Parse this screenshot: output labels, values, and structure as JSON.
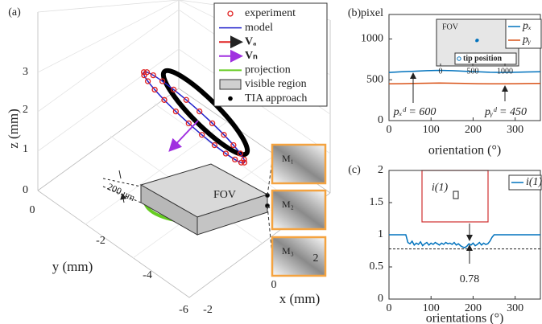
{
  "chart_data": [
    {
      "type": "3d",
      "panel_label": "(a)",
      "x_label": "x (mm)",
      "y_label": "y (mm)",
      "z_label": "z (mm)",
      "xticks": [
        -2,
        0,
        2
      ],
      "yticks": [
        -6,
        -4,
        -2,
        0
      ],
      "zticks": [
        0,
        1,
        2,
        3
      ],
      "legend": [
        "experiment",
        "model",
        "Vₐ",
        "Vₙ",
        "projection",
        "visible region",
        "TIA approach"
      ],
      "annotations": [
        "FOV",
        "200 um",
        "M₁",
        "M₂",
        "M₃"
      ]
    },
    {
      "type": "line",
      "panel_label": "(b)",
      "y_label": "pixel",
      "x_label": "orientation (°)",
      "x": [
        0,
        30,
        60,
        90,
        120,
        150,
        180,
        210,
        240,
        270,
        300,
        330,
        360
      ],
      "xlim": [
        0,
        360
      ],
      "xticks": [
        0,
        100,
        200,
        300
      ],
      "ylim": [
        0,
        1300
      ],
      "yticks": [
        0,
        500,
        1000
      ],
      "series": [
        {
          "name": "pₓ",
          "color": "#0072bd",
          "values": [
            590,
            598,
            605,
            612,
            615,
            612,
            605,
            598,
            592,
            590,
            592,
            596,
            598
          ]
        },
        {
          "name": "pᵧ",
          "color": "#d95319",
          "values": [
            450,
            452,
            455,
            458,
            460,
            458,
            455,
            452,
            450,
            450,
            452,
            454,
            455
          ]
        }
      ],
      "annotations": [
        "pₓᵈ = 600",
        "pᵧᵈ = 450"
      ]
    },
    {
      "type": "scatter",
      "title": "FOV",
      "xlim": [
        0,
        1200
      ],
      "xticks": [
        0,
        500,
        1000
      ],
      "ylim": [
        0,
        1024
      ],
      "series": [
        {
          "name": "tip position",
          "color": "#0072bd",
          "x": [
            560,
            565,
            570,
            575,
            568,
            562
          ],
          "values": [
            560,
            570,
            565,
            575,
            580,
            572
          ]
        }
      ]
    },
    {
      "type": "line",
      "panel_label": "(c)",
      "x_label": "orientations (°)",
      "x": [
        0,
        5,
        10,
        15,
        20,
        25,
        30,
        35,
        40,
        45,
        50,
        55,
        60,
        65,
        70,
        75,
        80,
        85,
        90,
        95,
        100,
        105,
        110,
        115,
        120,
        125,
        130,
        135,
        140,
        145,
        150,
        155,
        160,
        165,
        170,
        175,
        180,
        185,
        190,
        195,
        200,
        205,
        210,
        215,
        220,
        225,
        230,
        235,
        240,
        245,
        250,
        255,
        260,
        265,
        270,
        275,
        280,
        285,
        290,
        295,
        300,
        305,
        310,
        315,
        320,
        325,
        330,
        335,
        340,
        345,
        350,
        355,
        360
      ],
      "xlim": [
        0,
        360
      ],
      "xticks": [
        0,
        100,
        200,
        300
      ],
      "ylim": [
        0,
        2
      ],
      "yticks": [
        0,
        0.5,
        1,
        1.5,
        2
      ],
      "series": [
        {
          "name": "i(1)",
          "color": "#0072bd",
          "values": [
            1,
            1,
            1,
            1,
            1,
            1,
            1,
            1,
            1,
            0.88,
            0.86,
            0.9,
            0.84,
            0.87,
            0.85,
            0.89,
            0.83,
            0.86,
            0.88,
            0.84,
            0.87,
            0.85,
            0.88,
            0.86,
            0.84,
            0.87,
            0.85,
            0.88,
            0.86,
            0.87,
            0.85,
            0.88,
            0.84,
            0.86,
            0.83,
            0.81,
            0.8,
            0.82,
            0.86,
            0.84,
            0.87,
            0.83,
            0.85,
            0.88,
            0.84,
            0.87,
            0.85,
            0.86,
            0.9,
            0.96,
            1,
            1,
            1,
            1,
            1,
            1,
            1,
            1,
            1,
            1,
            1,
            1,
            1,
            1,
            1,
            1,
            1,
            1,
            1,
            1,
            1,
            1,
            1
          ]
        }
      ],
      "reference_line": 0.78,
      "inset_label": "i(1)"
    }
  ]
}
